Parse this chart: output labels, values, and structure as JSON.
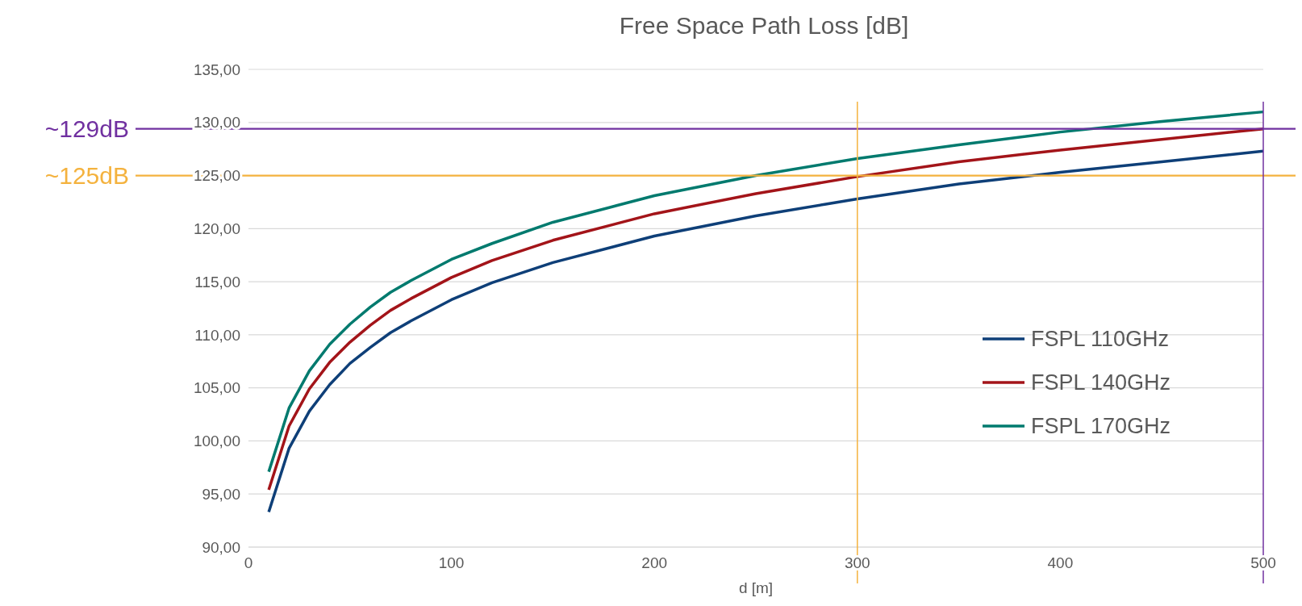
{
  "chart_data": {
    "type": "line",
    "title": "Free Space Path Loss [dB]",
    "xlabel": "d [m]",
    "x": [
      10,
      20,
      30,
      40,
      50,
      60,
      70,
      80,
      100,
      120,
      150,
      200,
      250,
      300,
      350,
      400,
      450,
      500
    ],
    "series": [
      {
        "name": "FSPL 110GHz",
        "color": "#0e3f78",
        "values": [
          93.3,
          99.3,
          102.8,
          105.3,
          107.3,
          108.8,
          110.2,
          111.3,
          113.3,
          114.9,
          116.8,
          119.3,
          121.2,
          122.8,
          124.2,
          125.3,
          126.3,
          127.3
        ]
      },
      {
        "name": "FSPL 140GHz",
        "color": "#a31419",
        "values": [
          95.4,
          101.4,
          104.9,
          107.4,
          109.3,
          110.9,
          112.3,
          113.4,
          115.4,
          117.0,
          118.9,
          121.4,
          123.3,
          124.9,
          126.3,
          127.4,
          128.4,
          129.4
        ]
      },
      {
        "name": "FSPL 170GHz",
        "color": "#007a6e",
        "values": [
          97.1,
          103.1,
          106.6,
          109.1,
          111.0,
          112.6,
          114.0,
          115.1,
          117.1,
          118.6,
          120.6,
          123.1,
          125.0,
          126.6,
          127.9,
          129.1,
          130.1,
          131.0
        ]
      }
    ],
    "xlim": [
      0,
      500
    ],
    "xticks": [
      0,
      100,
      200,
      300,
      400,
      500
    ],
    "ylim": [
      90,
      135
    ],
    "yticks": [
      {
        "value": 90,
        "label": "90,00"
      },
      {
        "value": 95,
        "label": "95,00"
      },
      {
        "value": 100,
        "label": "100,00"
      },
      {
        "value": 105,
        "label": "105,00"
      },
      {
        "value": 110,
        "label": "110,00"
      },
      {
        "value": 115,
        "label": "115,00"
      },
      {
        "value": 120,
        "label": "120,00"
      },
      {
        "value": 125,
        "label": "125,00"
      },
      {
        "value": 130,
        "label": "130,00"
      },
      {
        "value": 135,
        "label": "135,00"
      }
    ],
    "grid": "y",
    "legend": "right",
    "marker": "none",
    "line_style": "solid",
    "ref_lines": [
      {
        "axis": "y",
        "value": 129.4,
        "label": "~129dB",
        "color": "#7030a0"
      },
      {
        "axis": "y",
        "value": 125,
        "label": "~125dB",
        "color": "#f4b23e"
      },
      {
        "axis": "x",
        "value": 300,
        "color": "#f4b23e"
      },
      {
        "axis": "x",
        "value": 500,
        "color": "#7030a0"
      }
    ]
  }
}
